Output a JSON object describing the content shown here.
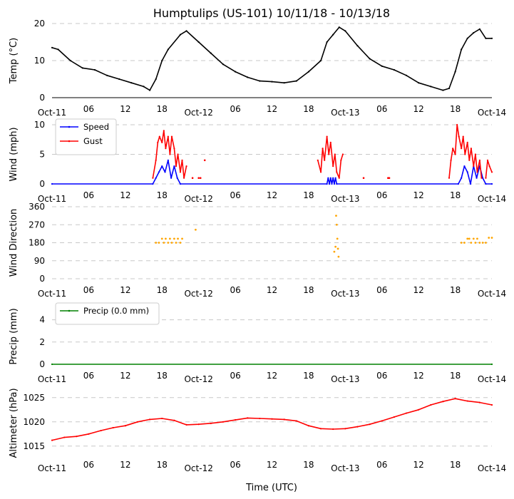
{
  "title": "Humptulips (US-101) 10/11/18 - 10/13/18",
  "xlabel": "Time (UTC)",
  "x_tick_labels": [
    "Oct-11",
    "06",
    "12",
    "18",
    "Oct-12",
    "06",
    "12",
    "18",
    "Oct-13",
    "06",
    "12",
    "18",
    "Oct-14"
  ],
  "colors": {
    "temp": "#000000",
    "speed": "#0000ff",
    "gust": "#ff0000",
    "direction": "#ffa500",
    "precip": "#008000",
    "altimeter": "#ff0000",
    "grid": "#c8c8c8"
  },
  "chart_data": [
    {
      "type": "line",
      "ylabel": "Temp (°C)",
      "ylim": [
        0,
        20
      ],
      "yticks": [
        0,
        10,
        20
      ],
      "xlim": [
        0,
        72
      ],
      "series": [
        {
          "name": "Temp",
          "x": [
            0,
            1,
            3,
            5,
            7,
            9,
            11,
            13,
            15,
            16,
            17,
            18,
            19,
            21,
            22,
            24,
            26,
            28,
            30,
            32,
            34,
            36,
            38,
            40,
            42,
            44,
            45,
            46,
            47,
            48,
            50,
            52,
            54,
            56,
            58,
            60,
            62,
            64,
            65,
            66,
            67,
            68,
            69,
            70,
            71,
            72
          ],
          "y": [
            13.5,
            13,
            10,
            8,
            7.5,
            6,
            5,
            4,
            3,
            2,
            5,
            10,
            13,
            17,
            18,
            15,
            12,
            9,
            7,
            5.5,
            4.5,
            4.3,
            4,
            4.5,
            7,
            10,
            15,
            17,
            19,
            18,
            14,
            10.5,
            8.5,
            7.5,
            6,
            4,
            3,
            2,
            2.5,
            7,
            13,
            16,
            17.5,
            18.5,
            16,
            16
          ]
        }
      ]
    },
    {
      "type": "line",
      "ylabel": "Wind (mph)",
      "ylim": [
        0,
        10
      ],
      "yticks": [
        0,
        5,
        10
      ],
      "xlim": [
        0,
        72
      ],
      "legend": [
        "Speed",
        "Gust"
      ],
      "series": [
        {
          "name": "Speed",
          "x": [
            0,
            16.5,
            17,
            17.5,
            18,
            18.5,
            19,
            19.5,
            20,
            20.5,
            21,
            45,
            45.2,
            45.4,
            45.6,
            45.8,
            46,
            46.2,
            46.4,
            46.6,
            66.5,
            67,
            67.5,
            68,
            68.5,
            69,
            69.5,
            70,
            70.5,
            71,
            72
          ],
          "y": [
            0,
            0,
            1,
            2,
            3,
            2,
            4,
            1,
            3,
            1,
            0,
            0,
            1,
            0,
            1,
            0,
            1,
            0,
            1,
            0,
            0,
            1,
            3,
            2,
            0,
            3,
            1,
            3,
            1,
            0,
            0
          ]
        },
        {
          "name": "Gust",
          "segments": [
            {
              "x": [
                16.5,
                17,
                17.3,
                17.6,
                18,
                18.3,
                18.6,
                19,
                19.3,
                19.6,
                20,
                20.3,
                20.6,
                21,
                21.3,
                21.6,
                22
              ],
              "y": [
                1,
                4,
                7,
                8,
                7,
                9,
                6,
                8,
                5,
                8,
                6,
                3,
                5,
                2,
                4,
                1,
                3
              ]
            },
            {
              "x": [
                43.5,
                44,
                44.3,
                44.6,
                45,
                45.3,
                45.6,
                46,
                46.3,
                46.6,
                47,
                47.3,
                47.6
              ],
              "y": [
                4,
                2,
                6,
                4,
                8,
                5,
                7,
                3,
                5,
                2,
                1,
                4,
                5
              ]
            },
            {
              "x": [
                65,
                65.3,
                65.6,
                66,
                66.3,
                66.6,
                67,
                67.3,
                67.6,
                68,
                68.3,
                68.6,
                69,
                69.3,
                69.6,
                70,
                70.3
              ],
              "y": [
                1,
                4,
                6,
                5,
                10,
                8,
                6,
                8,
                5,
                7,
                4,
                6,
                3,
                5,
                2,
                4,
                1
              ]
            },
            {
              "x": [
                71,
                71.3,
                71.6,
                72
              ],
              "y": [
                1,
                4,
                3,
                2
              ]
            }
          ],
          "points": {
            "x": [
              23,
              24,
              24.3,
              25,
              51,
              55,
              55.2
            ],
            "y": [
              1,
              1,
              1,
              4,
              1,
              1,
              1
            ]
          }
        }
      ]
    },
    {
      "type": "scatter",
      "ylabel": "Wind Direction",
      "ylim": [
        0,
        360
      ],
      "yticks": [
        0,
        90,
        180,
        270,
        360
      ],
      "xlim": [
        0,
        72
      ],
      "series": [
        {
          "name": "Direction",
          "x": [
            17,
            17.5,
            18,
            18.3,
            18.6,
            19,
            19.3,
            19.6,
            20,
            20.3,
            20.6,
            21,
            21.3,
            23.5,
            46.5,
            46.6,
            46.7,
            46.8,
            46.9,
            46.2,
            46.4,
            67,
            67.5,
            68,
            68.3,
            68.6,
            69,
            69.3,
            69.6,
            70,
            70.5,
            71,
            71.5,
            72
          ],
          "y": [
            180,
            180,
            200,
            180,
            200,
            180,
            200,
            180,
            200,
            180,
            200,
            180,
            200,
            245,
            315,
            270,
            200,
            150,
            110,
            135,
            160,
            180,
            180,
            200,
            200,
            180,
            200,
            180,
            200,
            180,
            180,
            180,
            205,
            205
          ]
        }
      ]
    },
    {
      "type": "line",
      "ylabel": "Precip (mm)",
      "ylim": [
        0,
        5
      ],
      "yticks": [
        0,
        2,
        4
      ],
      "xlim": [
        0,
        72
      ],
      "legend": [
        "Precip (0.0 mm)"
      ],
      "series": [
        {
          "name": "Precip (0.0 mm)",
          "x": [
            0,
            72
          ],
          "y": [
            0,
            0
          ]
        }
      ]
    },
    {
      "type": "line",
      "ylabel": "Altimeter (hPa)",
      "ylim": [
        1013.5,
        1026
      ],
      "yticks": [
        1015,
        1020,
        1025
      ],
      "xlim": [
        0,
        72
      ],
      "series": [
        {
          "name": "Altimeter",
          "x": [
            0,
            2,
            4,
            6,
            8,
            10,
            12,
            14,
            16,
            18,
            20,
            22,
            24,
            26,
            28,
            30,
            32,
            34,
            36,
            38,
            40,
            42,
            44,
            46,
            48,
            50,
            52,
            54,
            56,
            58,
            60,
            62,
            64,
            66,
            68,
            70,
            72
          ],
          "y": [
            1016.2,
            1016.8,
            1017,
            1017.5,
            1018.2,
            1018.8,
            1019.2,
            1020,
            1020.5,
            1020.7,
            1020.3,
            1019.4,
            1019.5,
            1019.7,
            1020,
            1020.4,
            1020.8,
            1020.7,
            1020.6,
            1020.5,
            1020.2,
            1019.2,
            1018.6,
            1018.5,
            1018.6,
            1019,
            1019.5,
            1020.2,
            1021,
            1021.8,
            1022.5,
            1023.5,
            1024.2,
            1024.8,
            1024.3,
            1024,
            1023.5
          ]
        }
      ]
    }
  ]
}
